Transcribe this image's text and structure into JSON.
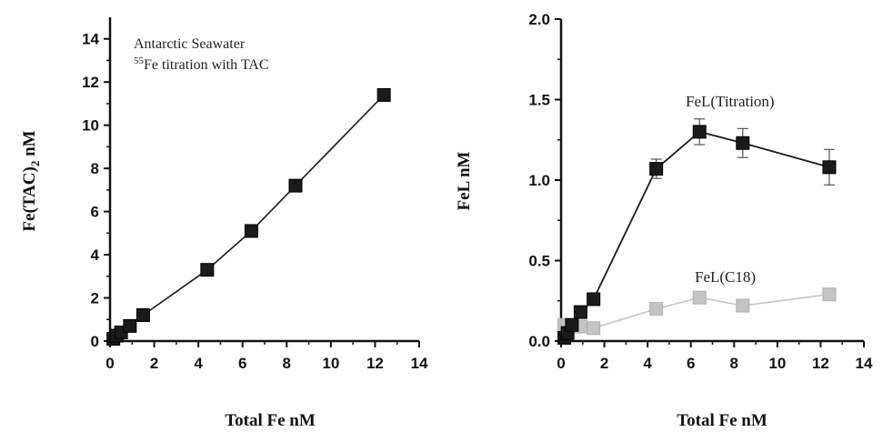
{
  "chart_data": [
    {
      "type": "line",
      "xlabel": "Total Fe nM",
      "ylabel_main": "Fe(TAC)",
      "ylabel_sub": "2",
      "ylabel_unit": " nM",
      "annotation_line1": "Antarctic Seawater",
      "annotation_sup": "55",
      "annotation_line2": "Fe titration with TAC",
      "xlim": [
        0,
        14
      ],
      "ylim": [
        0,
        15
      ],
      "xticks": [
        0,
        2,
        4,
        6,
        8,
        10,
        12,
        14
      ],
      "xtick_labels": [
        "0",
        "2",
        "4",
        "6",
        "8",
        "10",
        "12",
        "14"
      ],
      "yticks": [
        0,
        2,
        4,
        6,
        8,
        10,
        12,
        14
      ],
      "ytick_labels": [
        "0",
        "2",
        "4",
        "6",
        "8",
        "10",
        "12",
        "14"
      ],
      "series": [
        {
          "color": "#1a1a1a",
          "marker": "square",
          "x": [
            0.15,
            0.3,
            0.5,
            0.9,
            1.5,
            4.4,
            6.4,
            8.4,
            12.4
          ],
          "y": [
            0.1,
            0.25,
            0.4,
            0.7,
            1.2,
            3.3,
            5.1,
            7.2,
            11.4
          ]
        }
      ]
    },
    {
      "type": "line",
      "xlabel": "Total Fe nM",
      "ylabel": "FeL nM",
      "xlim": [
        0,
        14
      ],
      "ylim": [
        0,
        2
      ],
      "xticks": [
        0,
        2,
        4,
        6,
        8,
        10,
        12,
        14
      ],
      "xtick_labels": [
        "0",
        "2",
        "4",
        "6",
        "8",
        "10",
        "12",
        "14"
      ],
      "yticks": [
        0,
        0.5,
        1.0,
        1.5,
        2.0
      ],
      "ytick_labels": [
        "0.0",
        "0.5",
        "1.0",
        "1.5",
        "2.0"
      ],
      "series": [
        {
          "name": "FeL(Titration)",
          "color": "#1a1a1a",
          "marker": "square",
          "x": [
            0.15,
            0.3,
            0.5,
            0.9,
            1.5,
            4.4,
            6.4,
            8.4,
            12.4
          ],
          "y": [
            0.02,
            0.05,
            0.1,
            0.18,
            0.26,
            1.07,
            1.3,
            1.23,
            1.08
          ],
          "err": [
            0.02,
            0.02,
            0.03,
            0.03,
            0.03,
            0.06,
            0.08,
            0.09,
            0.11
          ]
        },
        {
          "name": "FeL(C18)",
          "color": "#c4c4c4",
          "marker": "square",
          "x": [
            0.15,
            0.3,
            0.5,
            0.9,
            1.5,
            4.4,
            6.4,
            8.4,
            12.4
          ],
          "y": [
            0.1,
            0.1,
            0.09,
            0.09,
            0.08,
            0.2,
            0.27,
            0.22,
            0.29
          ],
          "err": [
            0.02,
            0.02,
            0.02,
            0.02,
            0.02,
            0.03,
            0.03,
            0.03,
            0.03
          ]
        }
      ]
    }
  ]
}
